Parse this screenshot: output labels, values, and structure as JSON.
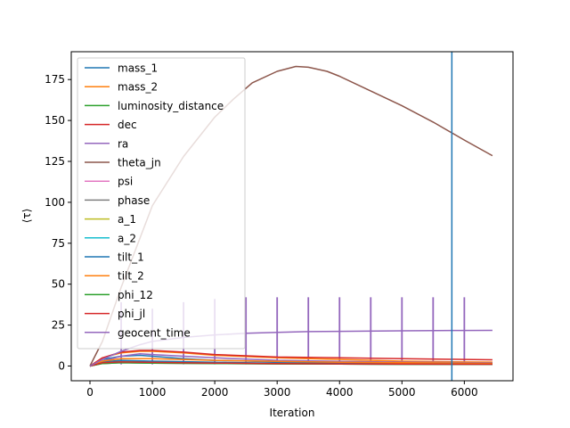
{
  "chart_data": {
    "type": "line",
    "title": "",
    "xlabel": "Iteration",
    "ylabel": "⟨τ⟩",
    "xlim": [
      -300,
      6780
    ],
    "ylim": [
      -9,
      192
    ],
    "xticks": [
      0,
      1000,
      2000,
      3000,
      4000,
      5000,
      6000
    ],
    "yticks": [
      0,
      25,
      50,
      75,
      100,
      125,
      150,
      175
    ],
    "grid": false,
    "legend_position": "upper-left",
    "vline": {
      "x": 5800,
      "color": "#1f77b4"
    },
    "spike_series_name": "geocent_time",
    "spikes": {
      "x": [
        500,
        1000,
        1500,
        2000,
        2500,
        3000,
        3500,
        4000,
        4500,
        5000,
        5500,
        6000
      ],
      "bottom": 1,
      "top": [
        39,
        35,
        39,
        41,
        42,
        42,
        42,
        42,
        42,
        42,
        42,
        42
      ]
    },
    "series": [
      {
        "name": "mass_1",
        "color": "#1f77b4",
        "x": [
          0,
          200,
          500,
          800,
          1000,
          1500,
          2000,
          3000,
          4000,
          5000,
          6000,
          6450
        ],
        "y": [
          0,
          4,
          6,
          6.5,
          6,
          4.5,
          3.5,
          2.5,
          2,
          1.8,
          1.6,
          1.5
        ]
      },
      {
        "name": "mass_2",
        "color": "#ff7f0e",
        "x": [
          0,
          200,
          500,
          800,
          1000,
          1500,
          2000,
          3000,
          4000,
          5000,
          6000,
          6450
        ],
        "y": [
          0,
          5,
          8,
          9,
          9,
          8,
          6.5,
          5,
          4,
          3,
          2.5,
          2.4
        ]
      },
      {
        "name": "luminosity_distance",
        "color": "#2ca02c",
        "x": [
          0,
          200,
          500,
          1000,
          2000,
          3000,
          4000,
          5000,
          6000,
          6450
        ],
        "y": [
          0,
          2,
          3,
          2.5,
          2,
          1.5,
          1.2,
          1,
          1,
          1
        ]
      },
      {
        "name": "dec",
        "color": "#d62728",
        "x": [
          0,
          200,
          500,
          800,
          1000,
          1500,
          2000,
          3000,
          4000,
          5000,
          6000,
          6450
        ],
        "y": [
          0,
          5,
          8.5,
          9.5,
          9.5,
          8.5,
          7,
          5.5,
          5,
          4.5,
          4,
          3.8
        ]
      },
      {
        "name": "ra",
        "color": "#9467bd",
        "x": [
          0,
          200,
          500,
          800,
          1000,
          1500,
          2000,
          3000,
          4000,
          5000,
          6000,
          6450
        ],
        "y": [
          0,
          3,
          6,
          7.5,
          7,
          6,
          5,
          3.5,
          2.8,
          2.4,
          2.1,
          2
        ]
      },
      {
        "name": "theta_jn",
        "color": "#8c564b",
        "x": [
          0,
          200,
          500,
          1000,
          1500,
          2000,
          2300,
          2600,
          3000,
          3300,
          3500,
          3800,
          4000,
          4500,
          5000,
          5500,
          6000,
          6450
        ],
        "y": [
          0,
          15,
          48,
          98,
          128,
          152,
          163,
          173,
          180,
          183,
          182.5,
          180,
          177,
          168,
          159,
          149,
          138,
          128.5
        ]
      },
      {
        "name": "psi",
        "color": "#e377c2",
        "x": [
          0,
          200,
          500,
          1000,
          2000,
          3000,
          4000,
          5000,
          6000,
          6450
        ],
        "y": [
          0,
          1.5,
          2,
          1.8,
          1.5,
          1.3,
          1.2,
          1.1,
          1,
          1
        ]
      },
      {
        "name": "phase",
        "color": "#7f7f7f",
        "x": [
          0,
          200,
          500,
          1000,
          2000,
          3000,
          4000,
          5000,
          6000,
          6450
        ],
        "y": [
          0,
          1.5,
          2,
          1.8,
          1.6,
          1.4,
          1.2,
          1.1,
          1,
          1
        ]
      },
      {
        "name": "a_1",
        "color": "#bcbd22",
        "x": [
          0,
          200,
          500,
          1000,
          2000,
          3000,
          4000,
          5000,
          6000,
          6450
        ],
        "y": [
          0,
          2,
          2.5,
          2.2,
          1.8,
          1.5,
          1.3,
          1.2,
          1.1,
          1.1
        ]
      },
      {
        "name": "a_2",
        "color": "#17becf",
        "x": [
          0,
          200,
          500,
          1000,
          2000,
          3000,
          4000,
          5000,
          6000,
          6450
        ],
        "y": [
          0,
          2,
          2.5,
          2.2,
          1.8,
          1.5,
          1.3,
          1.2,
          1.1,
          1.1
        ]
      },
      {
        "name": "tilt_1",
        "color": "#1f77b4",
        "x": [
          0,
          200,
          500,
          1000,
          2000,
          3000,
          4000,
          5000,
          6000,
          6450
        ],
        "y": [
          0,
          2.5,
          3.5,
          3,
          2.3,
          1.8,
          1.5,
          1.3,
          1.2,
          1.2
        ]
      },
      {
        "name": "tilt_2",
        "color": "#ff7f0e",
        "x": [
          0,
          200,
          500,
          1000,
          2000,
          3000,
          4000,
          5000,
          6000,
          6450
        ],
        "y": [
          0,
          3,
          4.5,
          4.5,
          3.5,
          2.8,
          2.3,
          2,
          1.8,
          1.7
        ]
      },
      {
        "name": "phi_12",
        "color": "#2ca02c",
        "x": [
          0,
          200,
          500,
          1000,
          2000,
          3000,
          4000,
          5000,
          6000,
          6450
        ],
        "y": [
          0,
          1.5,
          2,
          1.8,
          1.5,
          1.3,
          1.2,
          1.1,
          1,
          1
        ]
      },
      {
        "name": "phi_jl",
        "color": "#d62728",
        "x": [
          0,
          200,
          500,
          1000,
          2000,
          3000,
          4000,
          5000,
          6000,
          6450
        ],
        "y": [
          0,
          2,
          2.5,
          2.2,
          1.8,
          1.5,
          1.3,
          1.2,
          1.1,
          1.1
        ]
      },
      {
        "name": "geocent_time",
        "color": "#9467bd",
        "x": [
          0,
          200,
          500,
          800,
          1000,
          1500,
          2000,
          2500,
          3000,
          3500,
          4000,
          5000,
          6000,
          6450
        ],
        "y": [
          0,
          4,
          9,
          13,
          15,
          17.5,
          19,
          20,
          20.5,
          21,
          21.2,
          21.5,
          21.7,
          21.8
        ]
      }
    ]
  }
}
